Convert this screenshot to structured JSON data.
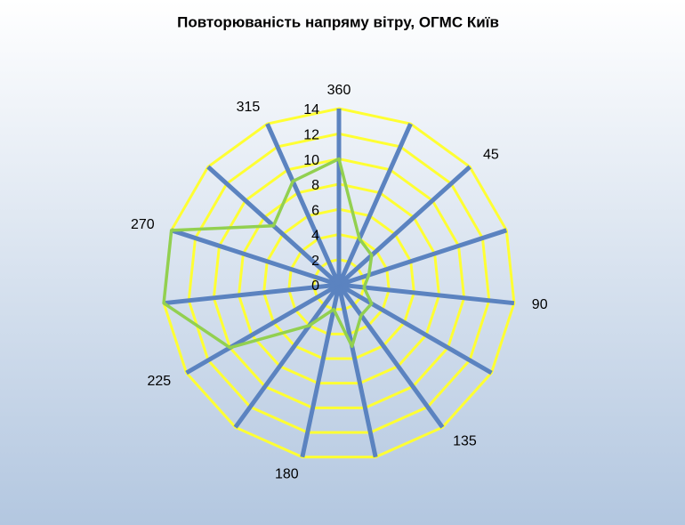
{
  "chart_data": {
    "type": "radar",
    "title": "Повторюваність напряму вітру, ОГМС Київ",
    "categories": [
      "360",
      null,
      "45",
      null,
      "90",
      null,
      "135",
      null,
      "180",
      null,
      "225",
      null,
      "270",
      null,
      "315"
    ],
    "series": [
      {
        "color": "#92d050",
        "values": [
          10,
          4,
          3.5,
          2.5,
          2,
          3,
          3,
          5,
          2,
          4,
          10,
          14,
          14,
          7,
          9
        ]
      }
    ],
    "ylim": [
      0,
      14
    ],
    "yticks": [
      0,
      2,
      4,
      6,
      8,
      10,
      12,
      14
    ],
    "grid": true,
    "grid_color": "#ffff33",
    "spoke_color": "#5b83c0"
  }
}
